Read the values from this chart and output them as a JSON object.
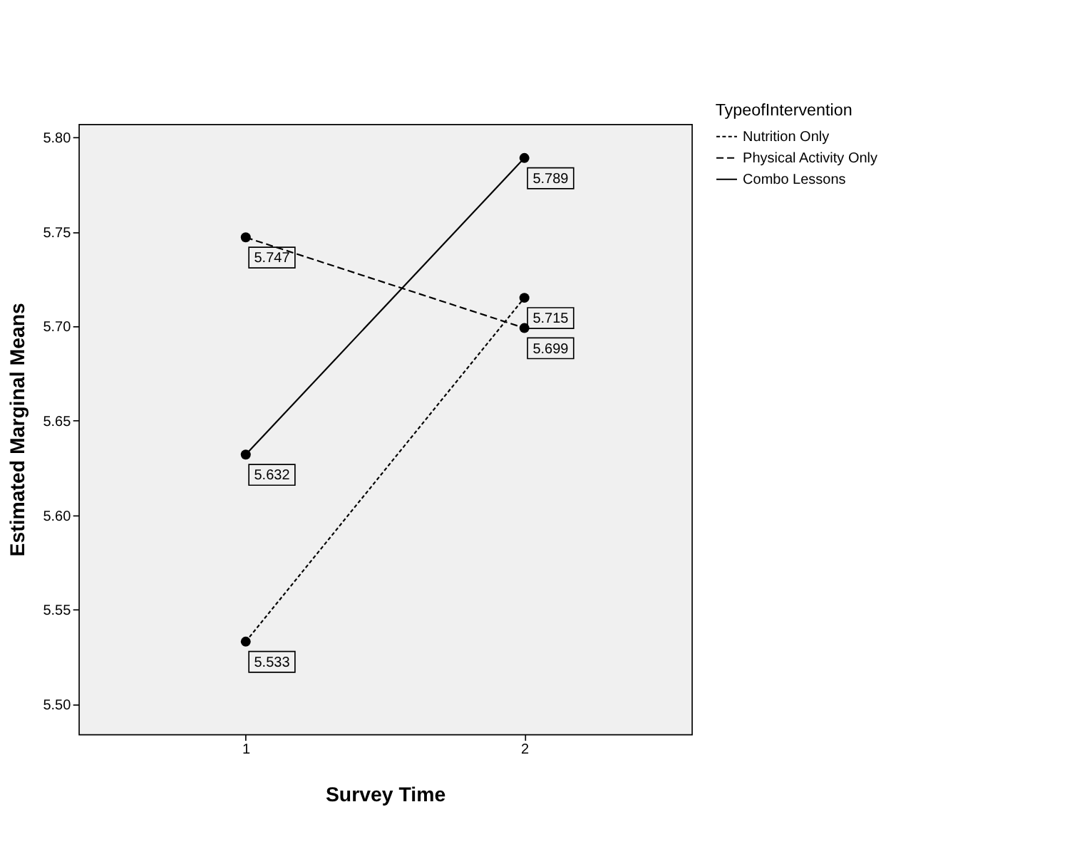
{
  "chart_data": {
    "type": "line",
    "xlabel": "Survey Time",
    "ylabel": "Estimated Marginal Means",
    "legend_title": "TypeofIntervention",
    "x": [
      1,
      2
    ],
    "xlim": [
      0.4,
      2.6
    ],
    "xticks": [
      1,
      2
    ],
    "ylim": [
      5.484,
      5.807
    ],
    "yticks": [
      {
        "value": 5.5,
        "label": "5.50"
      },
      5.55,
      {
        "value": 5.6,
        "label": "5.60"
      },
      5.65,
      {
        "value": 5.7,
        "label": "5.70"
      },
      5.75,
      {
        "value": 5.8,
        "label": "5.80"
      }
    ],
    "series": [
      {
        "name": "Nutrition Only",
        "color": "#000000",
        "line_style": "dotted",
        "values": [
          5.533,
          5.715
        ]
      },
      {
        "name": "Physical Activity Only",
        "color": "#000000",
        "line_style": "dashed",
        "values": [
          5.747,
          5.699
        ]
      },
      {
        "name": "Combo Lessons",
        "color": "#000000",
        "line_style": "solid",
        "values": [
          5.632,
          5.789
        ]
      }
    ],
    "marker": "circle",
    "data_labels": true,
    "grid": false,
    "legend": "top right"
  }
}
